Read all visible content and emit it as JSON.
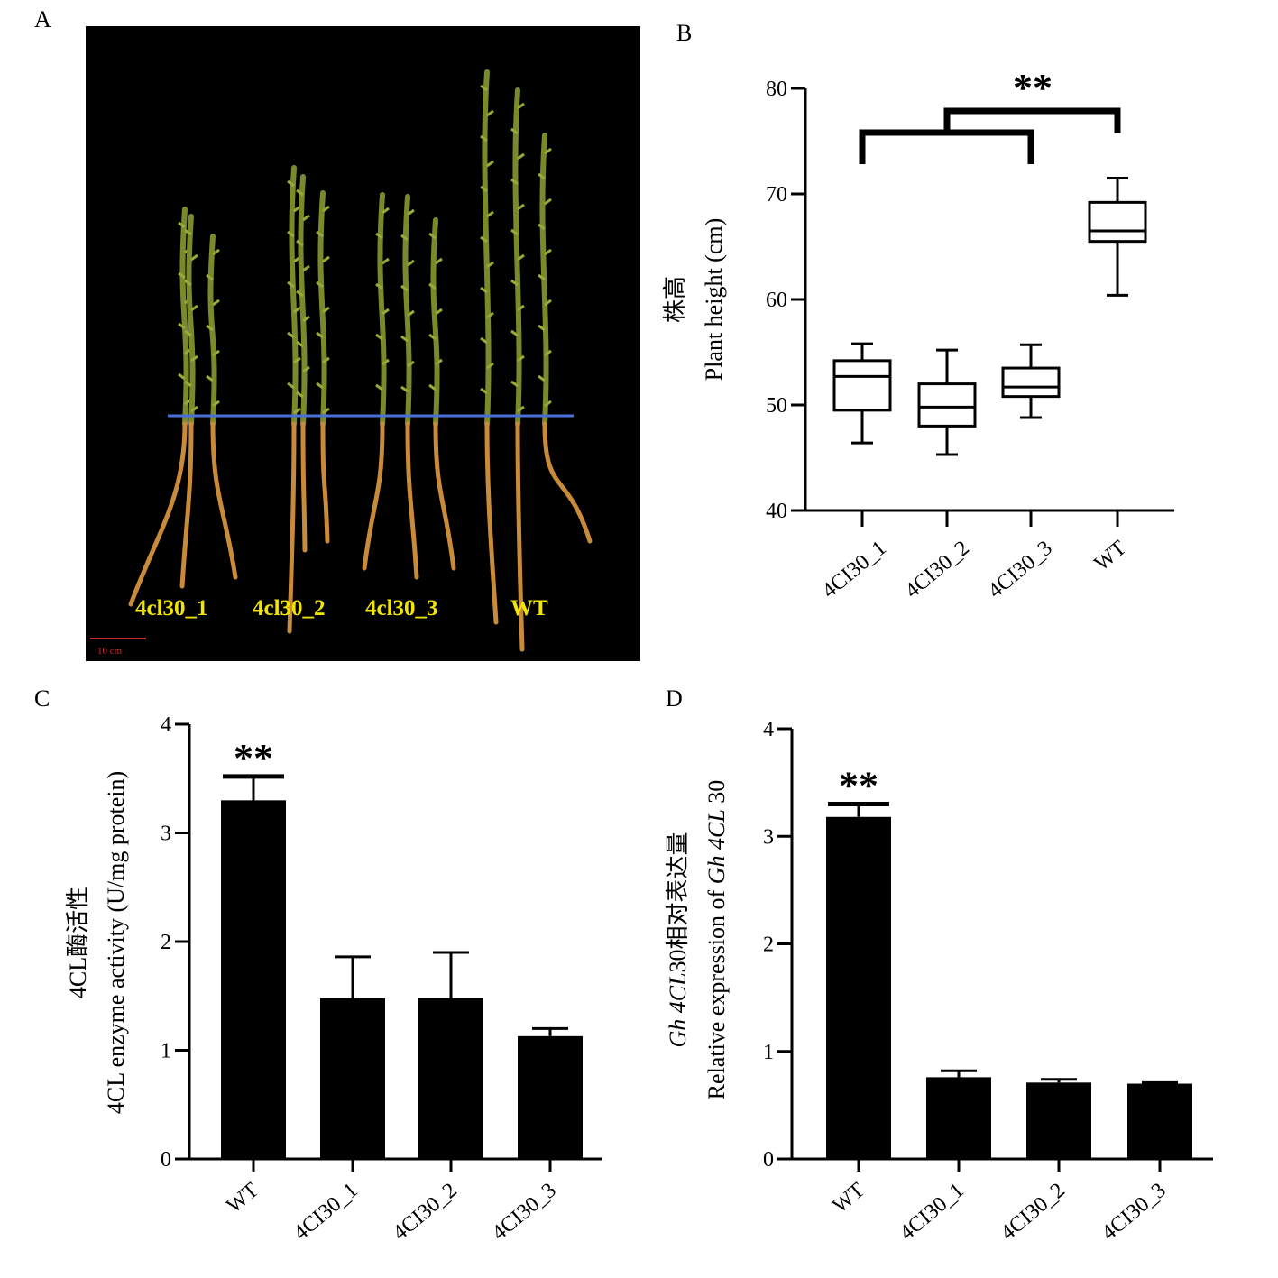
{
  "panels": {
    "a": "A",
    "b": "B",
    "c": "C",
    "d": "D"
  },
  "photo": {
    "labels": [
      "4cl30_1",
      "4cl30_2",
      "4cl30_3",
      "WT"
    ],
    "scale_bar_label": "10 cm",
    "colors": {
      "background": "#000000",
      "baseline": "#4a6fd6",
      "stem": "#7a8a2a",
      "root": "#c98a3a",
      "text": "#f2e600",
      "scale": "#cc2a2a"
    }
  },
  "chart_data": [
    {
      "type": "box",
      "panel": "B",
      "categories": [
        "4CI30_1",
        "4CI30_2",
        "4CI30_3",
        "WT"
      ],
      "boxes": [
        {
          "min": 46.4,
          "q1": 49.5,
          "median": 52.7,
          "q3": 54.2,
          "max": 55.8
        },
        {
          "min": 45.3,
          "q1": 48.0,
          "median": 49.8,
          "q3": 52.0,
          "max": 55.2
        },
        {
          "min": 48.8,
          "q1": 50.8,
          "median": 51.7,
          "q3": 53.5,
          "max": 55.7
        },
        {
          "min": 60.4,
          "q1": 65.5,
          "median": 66.5,
          "q3": 69.2,
          "max": 71.5
        }
      ],
      "ylabel_cn": "株高",
      "ylabel": "Plant height (cm)",
      "ylim": [
        40,
        80
      ],
      "yticks": [
        40,
        50,
        60,
        70,
        80
      ],
      "significance": "**",
      "grid": false
    },
    {
      "type": "bar",
      "panel": "C",
      "categories": [
        "WT",
        "4CI30_1",
        "4CI30_2",
        "4CI30_3"
      ],
      "values": [
        3.3,
        1.48,
        1.48,
        1.13
      ],
      "errors": [
        0.22,
        0.38,
        0.42,
        0.07
      ],
      "ylabel_cn": "4CL酶活性",
      "ylabel": "4CL enzyme activity (U/mg protein)",
      "ylim": [
        0,
        4
      ],
      "yticks": [
        0,
        1,
        2,
        3,
        4
      ],
      "significance": "**",
      "significance_category": "WT",
      "grid": false
    },
    {
      "type": "bar",
      "panel": "D",
      "categories": [
        "WT",
        "4CI30_1",
        "4CI30_2",
        "4CI30_3"
      ],
      "values": [
        3.18,
        0.76,
        0.71,
        0.7
      ],
      "errors": [
        0.12,
        0.06,
        0.03,
        0.01
      ],
      "ylabel_cn_gene": "Gh 4CL",
      "ylabel_cn_rest": "30相对表达量",
      "ylabel_prefix": "Relative expression of ",
      "ylabel_gene": "Gh 4CL",
      "ylabel_suffix": " 30",
      "ylim": [
        0,
        4
      ],
      "yticks": [
        0,
        1,
        2,
        3,
        4
      ],
      "significance": "**",
      "significance_category": "WT",
      "grid": false
    }
  ]
}
